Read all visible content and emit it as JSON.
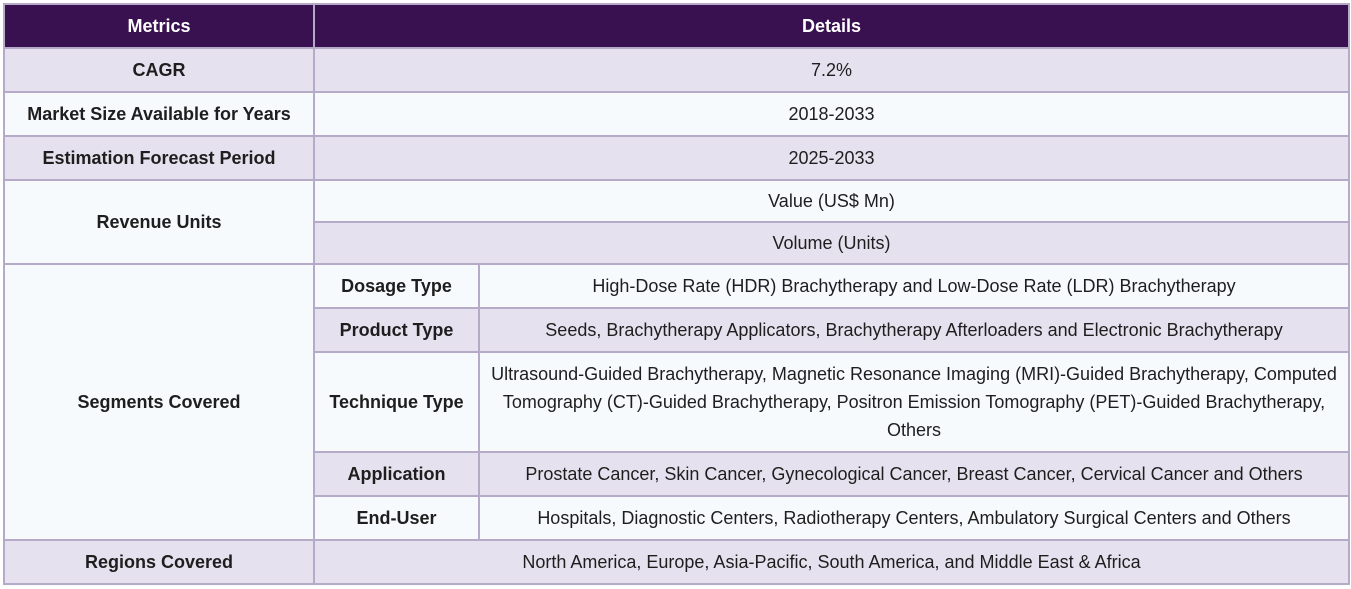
{
  "header": {
    "metrics": "Metrics",
    "details": "Details"
  },
  "rows": {
    "cagr": {
      "label": "CAGR",
      "value": "7.2%"
    },
    "market_size": {
      "label": "Market Size Available for Years",
      "value": "2018-2033"
    },
    "forecast": {
      "label": "Estimation Forecast Period",
      "value": "2025-2033"
    },
    "revenue_units": {
      "label": "Revenue Units",
      "values": [
        "Value (US$ Mn)",
        "Volume (Units)"
      ]
    },
    "segments": {
      "label": "Segments Covered",
      "items": [
        {
          "name": "Dosage Type",
          "value": "High-Dose Rate (HDR) Brachytherapy and Low-Dose Rate (LDR) Brachytherapy"
        },
        {
          "name": "Product Type",
          "value": "Seeds, Brachytherapy Applicators, Brachytherapy Afterloaders and Electronic Brachytherapy"
        },
        {
          "name": "Technique Type",
          "value": "Ultrasound-Guided Brachytherapy, Magnetic Resonance Imaging (MRI)-Guided Brachytherapy, Computed Tomography (CT)-Guided Brachytherapy, Positron Emission Tomography (PET)-Guided Brachytherapy, Others"
        },
        {
          "name": "Application",
          "value": "Prostate Cancer, Skin Cancer, Gynecological Cancer, Breast Cancer, Cervical Cancer and Others"
        },
        {
          "name": "End-User",
          "value": "Hospitals, Diagnostic Centers, Radiotherapy Centers, Ambulatory Surgical Centers and Others"
        }
      ]
    },
    "regions": {
      "label": "Regions Covered",
      "value": "North America, Europe, Asia-Pacific, South America, and Middle East & Africa"
    }
  },
  "colors": {
    "header_bg": "#3a1150",
    "header_text": "#ffffff",
    "row_shade": "#e6e1ee",
    "row_light": "#f6fafc",
    "border": "#b5aac8"
  }
}
